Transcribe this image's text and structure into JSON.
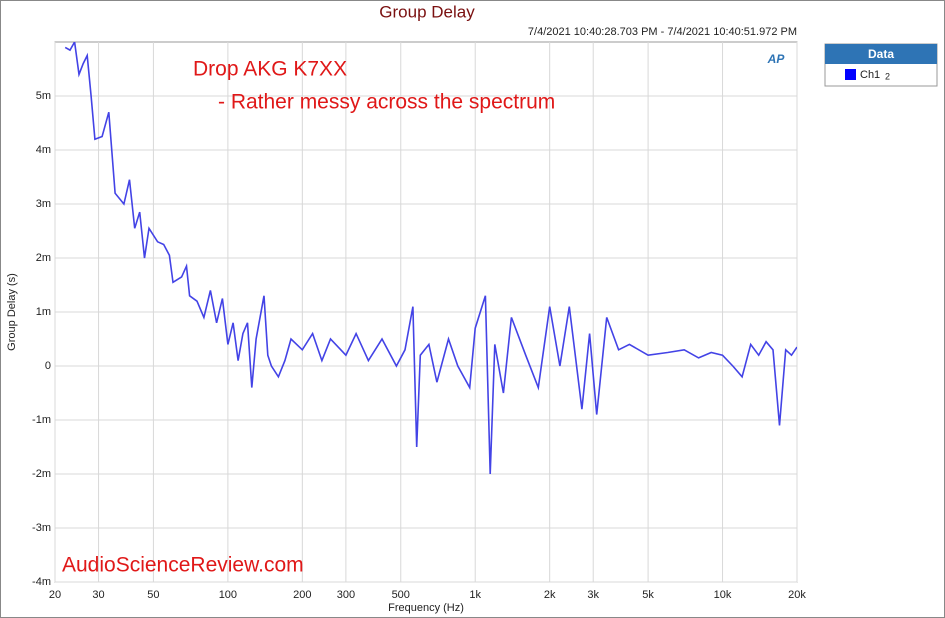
{
  "chart_data": {
    "type": "line",
    "title": "Group Delay",
    "subtitle": "7/4/2021 10:40:28.703 PM - 7/4/2021 10:40:51.972 PM",
    "annotations": [
      "Drop AKG K7XX",
      "- Rather messy across the spectrum",
      "AudioScienceReview.com"
    ],
    "logo": "AP",
    "x_label": "Frequency (Hz)",
    "y_label": "Group Delay (s)",
    "legend_title": "Data",
    "legend_sub": "2",
    "log_x": true,
    "grid": true,
    "xlim": [
      20,
      20000
    ],
    "xticks": [
      20,
      30,
      50,
      100,
      200,
      300,
      500,
      {
        "value": 1000,
        "label": "1k"
      },
      {
        "value": 2000,
        "label": "2k"
      },
      {
        "value": 3000,
        "label": "3k"
      },
      {
        "value": 5000,
        "label": "5k"
      },
      {
        "value": 10000,
        "label": "10k"
      },
      {
        "value": 20000,
        "label": "20k"
      }
    ],
    "ylim": [
      -0.004,
      0.006
    ],
    "yticks": [
      {
        "value": -0.004,
        "label": "-4m"
      },
      {
        "value": -0.003,
        "label": "-3m"
      },
      {
        "value": -0.002,
        "label": "-2m"
      },
      {
        "value": -0.001,
        "label": "-1m"
      },
      0,
      {
        "value": 0.001,
        "label": "1m"
      },
      {
        "value": 0.002,
        "label": "2m"
      },
      {
        "value": 0.003,
        "label": "3m"
      },
      {
        "value": 0.004,
        "label": "4m"
      },
      {
        "value": 0.005,
        "label": "5m"
      }
    ],
    "x": [
      22,
      23,
      24,
      25,
      26,
      27,
      28,
      29,
      31,
      33,
      35,
      38,
      40,
      42,
      44,
      46,
      48,
      52,
      55,
      58,
      60,
      65,
      68,
      70,
      75,
      80,
      85,
      90,
      95,
      100,
      105,
      110,
      115,
      120,
      125,
      130,
      140,
      145,
      150,
      160,
      170,
      180,
      200,
      220,
      240,
      260,
      300,
      330,
      370,
      420,
      480,
      520,
      560,
      580,
      600,
      650,
      700,
      780,
      850,
      950,
      1000,
      1100,
      1150,
      1200,
      1300,
      1400,
      1600,
      1800,
      2000,
      2200,
      2400,
      2700,
      2900,
      3100,
      3400,
      3800,
      4200,
      5000,
      6000,
      7000,
      8000,
      9000,
      10000,
      11000,
      12000,
      13000,
      14000,
      15000,
      16000,
      17000,
      18000,
      19000,
      20000
    ],
    "series": [
      {
        "name": "Ch1",
        "color": "#4343e6",
        "legend_color": "#0000ff",
        "values": [
          0.0059,
          0.00585,
          0.006,
          0.0054,
          0.0056,
          0.00575,
          0.005,
          0.0042,
          0.00425,
          0.0047,
          0.0032,
          0.003,
          0.00345,
          0.00255,
          0.00285,
          0.002,
          0.00255,
          0.0023,
          0.00225,
          0.00205,
          0.00155,
          0.00165,
          0.00185,
          0.0013,
          0.0012,
          0.0009,
          0.0014,
          0.0008,
          0.00125,
          0.0004,
          0.0008,
          0.0001,
          0.0006,
          0.0008,
          -0.0004,
          0.0005,
          0.0013,
          0.0002,
          0,
          -0.0002,
          0.0001,
          0.0005,
          0.0003,
          0.0006,
          0.0001,
          0.0005,
          0.0002,
          0.0006,
          0.0001,
          0.0005,
          0,
          0.0003,
          0.0011,
          -0.0015,
          0.0002,
          0.0004,
          -0.0003,
          0.0005,
          0,
          -0.0004,
          0.0007,
          0.0013,
          -0.002,
          0.0004,
          -0.0005,
          0.0009,
          0.0002,
          -0.0004,
          0.0011,
          0,
          0.0011,
          -0.0008,
          0.0006,
          -0.0009,
          0.0009,
          0.0003,
          0.0004,
          0.0002,
          0.00025,
          0.0003,
          0.00015,
          0.00025,
          0.0002,
          0,
          -0.0002,
          0.0004,
          0.0002,
          0.00045,
          0.0003,
          -0.0011,
          0.0003,
          0.0002,
          0.00035
        ]
      }
    ]
  }
}
